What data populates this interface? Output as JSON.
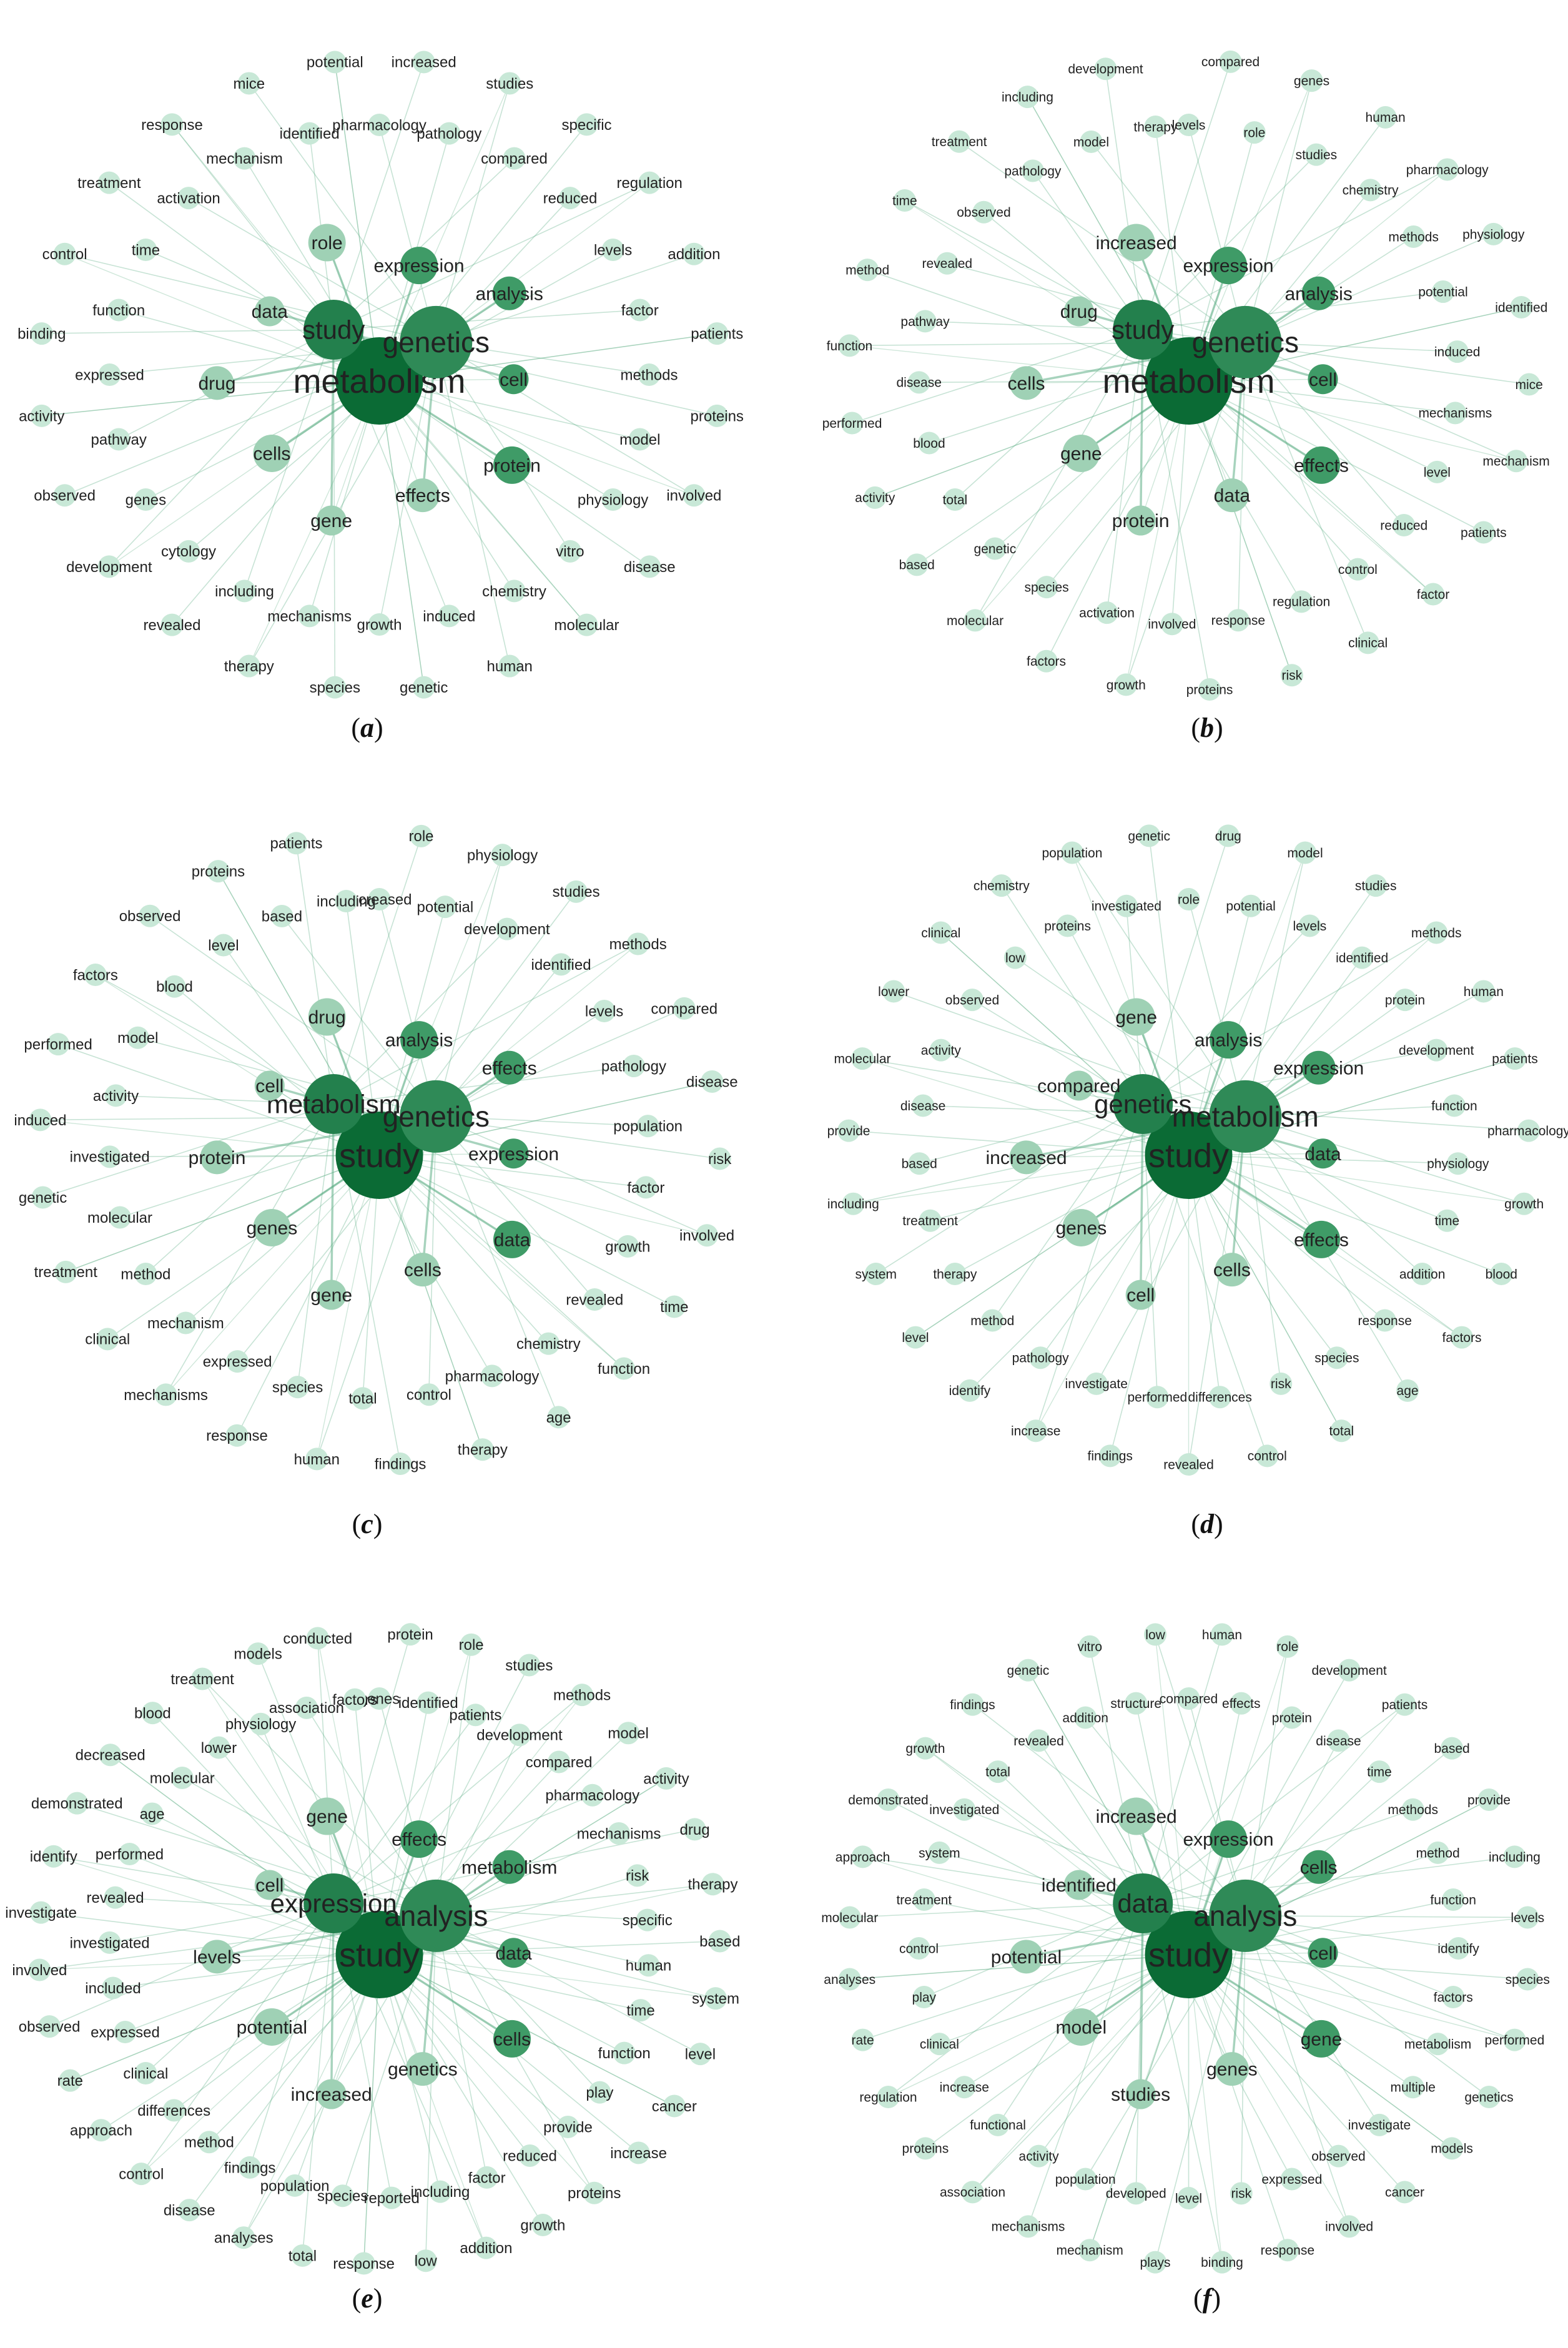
{
  "panels": [
    {
      "caption": "a",
      "center": "metabolism",
      "words": [
        "metabolism",
        "genetics",
        "study",
        "expression",
        "analysis",
        "cell",
        "protein",
        "effects",
        "gene",
        "cells",
        "drug",
        "data",
        "role",
        "pharmacology",
        "increased",
        "pathology",
        "studies",
        "compared",
        "specific",
        "reduced",
        "regulation",
        "levels",
        "addition",
        "factor",
        "patients",
        "methods",
        "proteins",
        "model",
        "involved",
        "physiology",
        "disease",
        "vitro",
        "molecular",
        "chemistry",
        "human",
        "induced",
        "genetic",
        "growth",
        "species",
        "mechanisms",
        "therapy",
        "including",
        "revealed",
        "cytology",
        "development",
        "genes",
        "observed",
        "pathway",
        "activity",
        "expressed",
        "binding",
        "function",
        "control",
        "time",
        "treatment",
        "activation",
        "response",
        "mechanism",
        "mice",
        "identified",
        "potential"
      ]
    },
    {
      "caption": "b",
      "center": "metabolism",
      "words": [
        "metabolism",
        "genetics",
        "study",
        "expression",
        "analysis",
        "cell",
        "effects",
        "data",
        "protein",
        "gene",
        "cells",
        "drug",
        "increased",
        "levels",
        "compared",
        "role",
        "genes",
        "studies",
        "human",
        "chemistry",
        "pharmacology",
        "methods",
        "physiology",
        "potential",
        "identified",
        "induced",
        "mice",
        "mechanisms",
        "mechanism",
        "level",
        "patients",
        "reduced",
        "factor",
        "control",
        "clinical",
        "regulation",
        "risk",
        "response",
        "proteins",
        "involved",
        "growth",
        "activation",
        "factors",
        "species",
        "molecular",
        "genetic",
        "based",
        "total",
        "activity",
        "blood",
        "performed",
        "disease",
        "function",
        "pathway",
        "method",
        "revealed",
        "time",
        "observed",
        "treatment",
        "pathology",
        "including",
        "model",
        "development",
        "therapy"
      ]
    },
    {
      "caption": "c",
      "center": "study",
      "words": [
        "study",
        "genetics",
        "metabolism",
        "analysis",
        "effects",
        "expression",
        "data",
        "cells",
        "gene",
        "genes",
        "protein",
        "cell",
        "drug",
        "increased",
        "role",
        "potential",
        "physiology",
        "development",
        "studies",
        "identified",
        "methods",
        "levels",
        "compared",
        "pathology",
        "disease",
        "population",
        "risk",
        "factor",
        "involved",
        "growth",
        "time",
        "revealed",
        "function",
        "chemistry",
        "age",
        "pharmacology",
        "therapy",
        "control",
        "findings",
        "total",
        "human",
        "species",
        "response",
        "expressed",
        "mechanisms",
        "mechanism",
        "clinical",
        "method",
        "treatment",
        "molecular",
        "genetic",
        "investigated",
        "induced",
        "activity",
        "performed",
        "model",
        "factors",
        "blood",
        "observed",
        "level",
        "proteins",
        "based",
        "patients",
        "including"
      ]
    },
    {
      "caption": "d",
      "center": "study",
      "words": [
        "study",
        "metabolism",
        "genetics",
        "analysis",
        "expression",
        "data",
        "effects",
        "cells",
        "cell",
        "genes",
        "increased",
        "compared",
        "gene",
        "role",
        "drug",
        "potential",
        "model",
        "levels",
        "studies",
        "identified",
        "methods",
        "protein",
        "human",
        "development",
        "patients",
        "function",
        "pharmacology",
        "physiology",
        "growth",
        "time",
        "blood",
        "addition",
        "factors",
        "response",
        "age",
        "species",
        "total",
        "risk",
        "control",
        "differences",
        "revealed",
        "performed",
        "findings",
        "investigate",
        "increase",
        "pathology",
        "identify",
        "method",
        "level",
        "therapy",
        "system",
        "treatment",
        "including",
        "based",
        "provide",
        "disease",
        "molecular",
        "activity",
        "lower",
        "observed",
        "clinical",
        "low",
        "chemistry",
        "proteins",
        "population",
        "investigated",
        "genetic"
      ]
    },
    {
      "caption": "e",
      "center": "study",
      "words": [
        "study",
        "analysis",
        "expression",
        "effects",
        "metabolism",
        "data",
        "cells",
        "genetics",
        "increased",
        "potential",
        "levels",
        "cell",
        "gene",
        "genes",
        "protein",
        "identified",
        "role",
        "patients",
        "studies",
        "development",
        "methods",
        "compared",
        "model",
        "pharmacology",
        "activity",
        "mechanisms",
        "drug",
        "risk",
        "therapy",
        "specific",
        "based",
        "human",
        "system",
        "time",
        "level",
        "function",
        "cancer",
        "play",
        "increase",
        "provide",
        "proteins",
        "reduced",
        "growth",
        "factor",
        "addition",
        "including",
        "low",
        "reported",
        "response",
        "species",
        "total",
        "population",
        "analyses",
        "findings",
        "disease",
        "method",
        "control",
        "differences",
        "approach",
        "clinical",
        "rate",
        "expressed",
        "observed",
        "included",
        "involved",
        "investigated",
        "investigate",
        "revealed",
        "identify",
        "performed",
        "demonstrated",
        "age",
        "decreased",
        "molecular",
        "blood",
        "lower",
        "treatment",
        "physiology",
        "models",
        "association",
        "conducted",
        "factors"
      ]
    },
    {
      "caption": "f",
      "center": "study",
      "words": [
        "study",
        "analysis",
        "data",
        "expression",
        "cells",
        "cell",
        "gene",
        "genes",
        "studies",
        "model",
        "potential",
        "identified",
        "increased",
        "compared",
        "human",
        "effects",
        "role",
        "protein",
        "development",
        "disease",
        "patients",
        "time",
        "based",
        "methods",
        "provide",
        "method",
        "including",
        "function",
        "levels",
        "identify",
        "species",
        "factors",
        "performed",
        "metabolism",
        "genetics",
        "multiple",
        "models",
        "investigate",
        "cancer",
        "observed",
        "involved",
        "expressed",
        "response",
        "risk",
        "binding",
        "level",
        "plays",
        "developed",
        "mechanism",
        "population",
        "mechanisms",
        "activity",
        "association",
        "functional",
        "proteins",
        "increase",
        "regulation",
        "clinical",
        "rate",
        "play",
        "analyses",
        "control",
        "molecular",
        "treatment",
        "approach",
        "system",
        "demonstrated",
        "investigated",
        "growth",
        "total",
        "findings",
        "revealed",
        "genetic",
        "addition",
        "vitro",
        "structure",
        "low"
      ]
    }
  ],
  "colors": {
    "node_dark": "#0b6b35",
    "node_mid": "#3f9b67",
    "node_light": "#c8e8d7",
    "edge": "#5fae86",
    "text": "#222222"
  }
}
